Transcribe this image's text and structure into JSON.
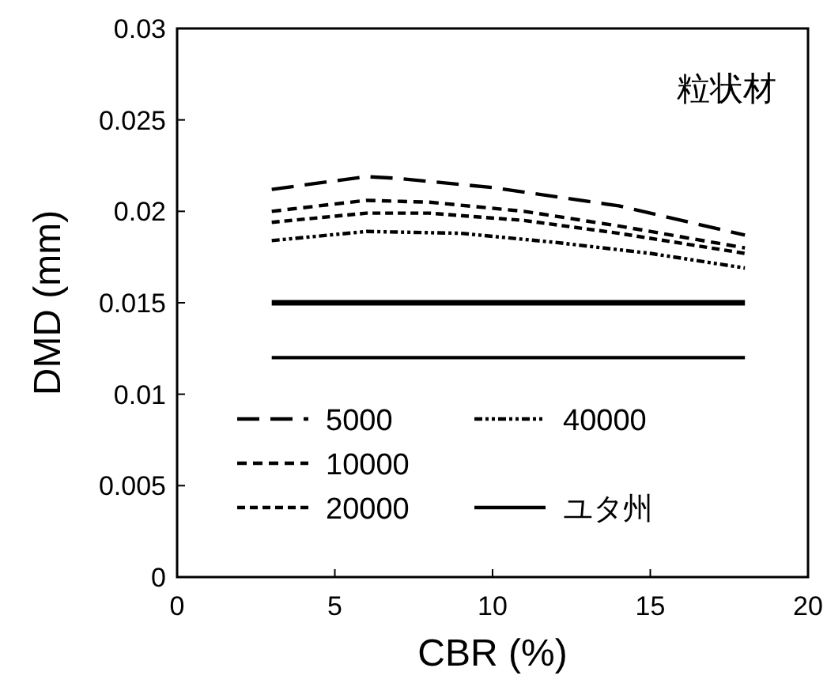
{
  "chart_data": {
    "type": "line",
    "xlabel": "CBR (%)",
    "ylabel": "DMD (mm)",
    "annotations": [
      "粒状材"
    ],
    "xlim": [
      0,
      20
    ],
    "ylim": [
      0,
      0.03
    ],
    "xticks": [
      0,
      5,
      10,
      15,
      20
    ],
    "yticks": [
      0,
      0.005,
      0.01,
      0.015,
      0.02,
      0.025,
      0.03
    ],
    "grid": false,
    "legend": "bottom",
    "marker": "none",
    "series": [
      {
        "name": "5000",
        "color": "#000000",
        "line_style": "dashed",
        "x": [
          3,
          6,
          7,
          10,
          14,
          18
        ],
        "values": [
          0.0212,
          0.0219,
          0.0218,
          0.0213,
          0.0203,
          0.0187
        ]
      },
      {
        "name": "10000",
        "color": "#000000",
        "line_style": "dashed",
        "x": [
          3,
          6,
          8,
          11,
          14,
          18
        ],
        "values": [
          0.02,
          0.0206,
          0.0205,
          0.02,
          0.0192,
          0.018
        ]
      },
      {
        "name": "20000",
        "color": "#000000",
        "line_style": "dashed",
        "x": [
          3,
          6,
          8,
          11,
          14,
          18
        ],
        "values": [
          0.0194,
          0.0199,
          0.0199,
          0.0195,
          0.0188,
          0.0177
        ]
      },
      {
        "name": "40000",
        "color": "#000000",
        "line_style": "dotted",
        "x": [
          3,
          6,
          9,
          12,
          15,
          18
        ],
        "values": [
          0.0184,
          0.0189,
          0.0188,
          0.0183,
          0.0177,
          0.0169
        ]
      },
      {
        "color": "#000000",
        "line_style": "solid",
        "x": [
          3,
          18
        ],
        "values": [
          0.015,
          0.015
        ]
      },
      {
        "name": "ユタ州",
        "color": "#000000",
        "line_style": "solid",
        "x": [
          3,
          18
        ],
        "values": [
          0.012,
          0.012
        ]
      }
    ]
  }
}
